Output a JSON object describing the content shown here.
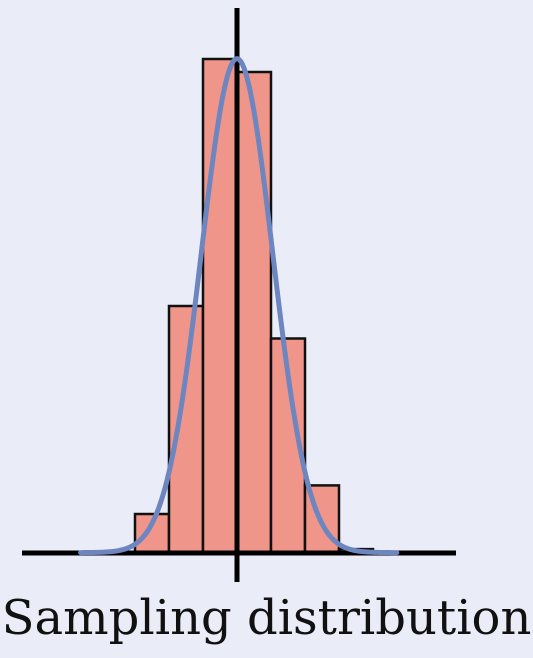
{
  "chart_data": {
    "type": "bar",
    "title": "",
    "xlabel": "",
    "ylabel": "",
    "caption": "Sampling distribution",
    "bins": [
      {
        "x0": -3.0,
        "x1": -2.0,
        "value": 0.03
      },
      {
        "x0": -2.0,
        "x1": -1.0,
        "value": 0.19
      },
      {
        "x0": -1.0,
        "x1": 0.0,
        "value": 0.38
      },
      {
        "x0": 0.0,
        "x1": 1.0,
        "value": 0.37
      },
      {
        "x0": 1.0,
        "x1": 2.0,
        "value": 0.165
      },
      {
        "x0": 2.0,
        "x1": 3.0,
        "value": 0.052
      },
      {
        "x0": 3.0,
        "x1": 4.0,
        "value": 0.003
      }
    ],
    "normal_curve": {
      "mean": 0.0,
      "sd": 1.05,
      "peak": 0.38
    },
    "xlim": [
      -5.0,
      6.0
    ],
    "ylim": [
      0,
      0.4
    ],
    "grid": false,
    "legend": "none",
    "colors": {
      "bar_fill": "#ef958a",
      "bar_stroke": "#111111",
      "curve": "#6e86c0",
      "axis": "#000000",
      "background": "#eaedf7"
    }
  }
}
